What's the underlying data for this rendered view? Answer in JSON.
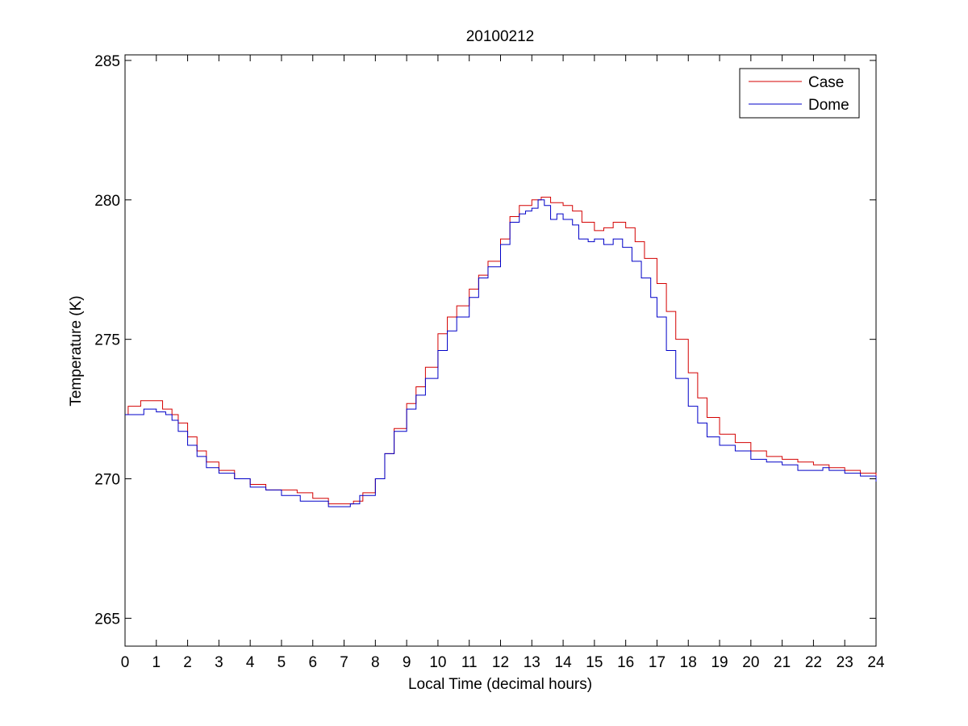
{
  "chart_data": {
    "type": "line",
    "title": "20100212",
    "xlabel": "Local Time (decimal hours)",
    "ylabel": "Temperature (K)",
    "xlim": [
      0,
      24
    ],
    "ylim": [
      264,
      285.2
    ],
    "xticks": [
      "0",
      "1",
      "2",
      "3",
      "4",
      "5",
      "6",
      "7",
      "8",
      "9",
      "10",
      "11",
      "12",
      "13",
      "14",
      "15",
      "16",
      "17",
      "18",
      "19",
      "20",
      "21",
      "22",
      "23",
      "24"
    ],
    "yticks": [
      "265",
      "270",
      "275",
      "280",
      "285"
    ],
    "grid": false,
    "legend_position": "top-right",
    "series": [
      {
        "name": "Case",
        "color": "#d40000",
        "x": [
          0,
          0.1,
          0.5,
          1.0,
          1.2,
          1.5,
          1.7,
          2.0,
          2.3,
          2.6,
          3.0,
          3.5,
          4.0,
          4.5,
          5.0,
          5.5,
          6.0,
          6.5,
          7.0,
          7.3,
          7.6,
          8.0,
          8.3,
          8.6,
          9.0,
          9.3,
          9.6,
          10.0,
          10.3,
          10.6,
          11.0,
          11.3,
          11.6,
          12.0,
          12.3,
          12.6,
          13.0,
          13.3,
          13.6,
          14.0,
          14.3,
          14.6,
          15.0,
          15.3,
          15.6,
          16.0,
          16.3,
          16.6,
          17.0,
          17.3,
          17.6,
          18.0,
          18.3,
          18.6,
          19.0,
          19.5,
          20.0,
          20.5,
          21.0,
          21.5,
          22.0,
          22.5,
          23.0,
          23.5,
          24.0
        ],
        "y": [
          272.3,
          272.6,
          272.8,
          272.8,
          272.5,
          272.3,
          272.0,
          271.5,
          271.0,
          270.6,
          270.3,
          270.0,
          269.8,
          269.6,
          269.6,
          269.5,
          269.3,
          269.1,
          269.1,
          269.2,
          269.5,
          270.0,
          270.9,
          271.8,
          272.7,
          273.3,
          274.0,
          275.2,
          275.8,
          276.2,
          276.8,
          277.3,
          277.8,
          278.6,
          279.4,
          279.8,
          280.0,
          280.1,
          279.9,
          279.8,
          279.6,
          279.2,
          278.9,
          279.0,
          279.2,
          279.0,
          278.5,
          277.9,
          277.0,
          276.0,
          275.0,
          273.8,
          272.9,
          272.2,
          271.6,
          271.3,
          271.0,
          270.8,
          270.7,
          270.6,
          270.5,
          270.4,
          270.3,
          270.2,
          270.0
        ]
      },
      {
        "name": "Dome",
        "color": "#0000c8",
        "x": [
          0,
          0.5,
          0.6,
          1.0,
          1.3,
          1.5,
          1.7,
          2.0,
          2.3,
          2.6,
          3.0,
          3.5,
          4.0,
          4.5,
          5.0,
          5.5,
          5.6,
          6.0,
          6.5,
          7.0,
          7.2,
          7.5,
          8.0,
          8.3,
          8.6,
          9.0,
          9.3,
          9.6,
          10.0,
          10.3,
          10.6,
          11.0,
          11.3,
          11.6,
          12.0,
          12.3,
          12.6,
          12.8,
          13.0,
          13.2,
          13.4,
          13.6,
          13.8,
          14.0,
          14.3,
          14.5,
          14.8,
          15.0,
          15.3,
          15.6,
          15.9,
          16.2,
          16.5,
          16.8,
          17.0,
          17.3,
          17.6,
          18.0,
          18.3,
          18.6,
          19.0,
          19.5,
          20.0,
          20.5,
          21.0,
          21.5,
          22.0,
          22.3,
          22.5,
          23.0,
          23.5,
          24.0
        ],
        "y": [
          272.3,
          272.3,
          272.5,
          272.4,
          272.3,
          272.1,
          271.7,
          271.2,
          270.8,
          270.4,
          270.2,
          270.0,
          269.7,
          269.6,
          269.4,
          269.4,
          269.2,
          269.2,
          269.0,
          269.0,
          269.1,
          269.4,
          270.0,
          270.9,
          271.7,
          272.5,
          273.0,
          273.6,
          274.6,
          275.3,
          275.8,
          276.5,
          277.2,
          277.6,
          278.4,
          279.2,
          279.5,
          279.6,
          279.7,
          280.0,
          279.8,
          279.3,
          279.5,
          279.3,
          279.1,
          278.6,
          278.5,
          278.6,
          278.4,
          278.6,
          278.3,
          277.8,
          277.2,
          276.5,
          275.8,
          274.6,
          273.6,
          272.6,
          272.0,
          271.5,
          271.2,
          271.0,
          270.7,
          270.6,
          270.5,
          270.3,
          270.3,
          270.4,
          270.3,
          270.2,
          270.1,
          269.9
        ]
      }
    ]
  }
}
